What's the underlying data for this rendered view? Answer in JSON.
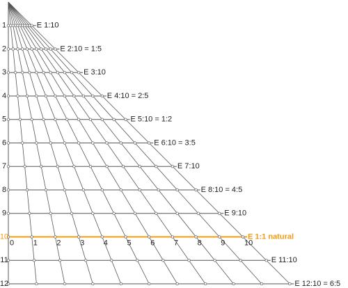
{
  "rows": [
    {
      "number": "1",
      "label": "E 1:10",
      "color": "#222222"
    },
    {
      "number": "2",
      "label": "E 2:10 = 1:5",
      "color": "#222222"
    },
    {
      "number": "3",
      "label": "E 3:10",
      "color": "#222222"
    },
    {
      "number": "4",
      "label": "E 4:10 = 2:5",
      "color": "#222222"
    },
    {
      "number": "5",
      "label": "E 5:10 = 1:2",
      "color": "#222222"
    },
    {
      "number": "6",
      "label": "E 6:10 = 3:5",
      "color": "#222222"
    },
    {
      "number": "7",
      "label": "E 7:10",
      "color": "#222222"
    },
    {
      "number": "8",
      "label": "E 8:10 = 4:5",
      "color": "#222222"
    },
    {
      "number": "9",
      "label": "E 9:10",
      "color": "#222222"
    },
    {
      "number": "10",
      "label": "E 1:1 natural",
      "color": "#f39c12",
      "scale": [
        "0",
        "1",
        "2",
        "3",
        "4",
        "5",
        "6",
        "7",
        "8",
        "9",
        "10"
      ]
    },
    {
      "number": "11",
      "label": "E 11:10",
      "color": "#222222"
    },
    {
      "number": "12",
      "label": "E 12:10 = 6:5",
      "color": "#222222"
    }
  ]
}
